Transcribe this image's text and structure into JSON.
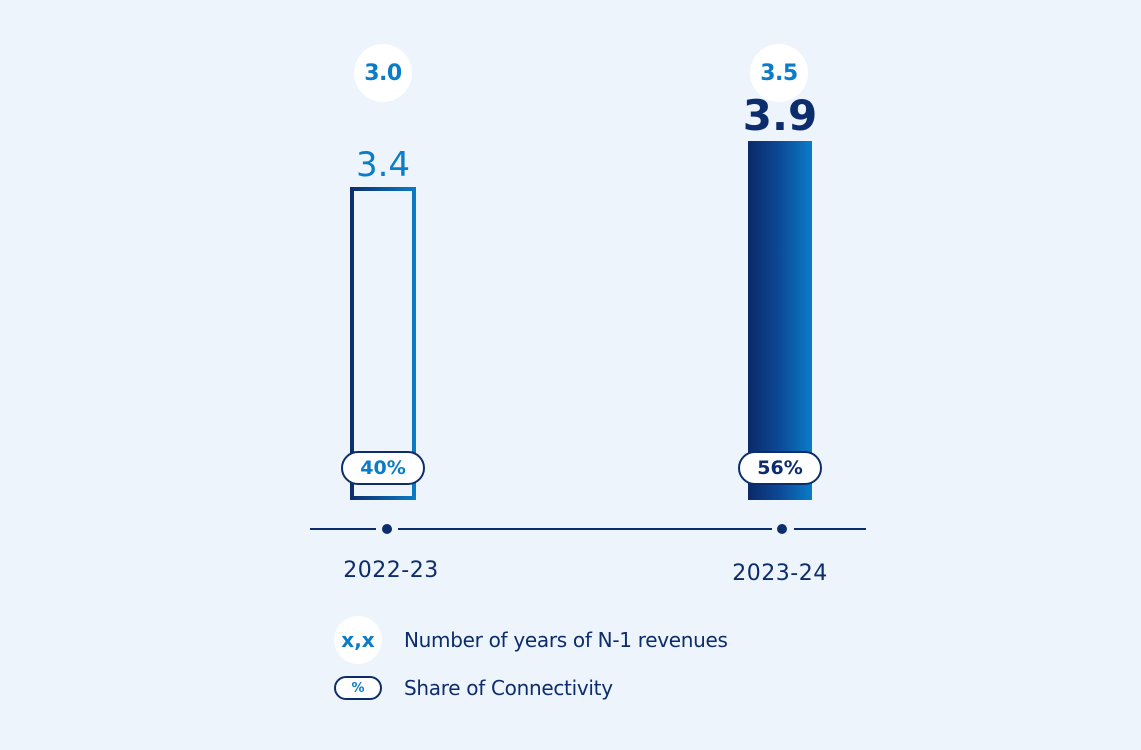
{
  "chart_data": {
    "type": "bar",
    "categories": [
      "2022-23",
      "2023-24"
    ],
    "series": [
      {
        "name": "",
        "values": [
          3.4,
          3.9
        ],
        "value_labels": [
          "3.4",
          "3.9"
        ]
      }
    ],
    "years_of_revenues": [
      3.0,
      3.5
    ],
    "years_of_revenues_labels": [
      "3.0",
      "3.5"
    ],
    "connectivity_share": [
      40,
      56
    ],
    "connectivity_share_labels": [
      "40%",
      "56%"
    ],
    "ylim": [
      0,
      4.3
    ],
    "grid": false,
    "legend": [
      {
        "symbol": "x,x",
        "label": "Number of years of N-1 revenues"
      },
      {
        "symbol": "%",
        "label": "Share of Connectivity"
      }
    ],
    "legend_position": "bottom",
    "colors": {
      "background": "#edf4fc",
      "dark_blue": "#0c2d6b",
      "light_blue": "#0a7cc8",
      "white": "#ffffff"
    }
  }
}
